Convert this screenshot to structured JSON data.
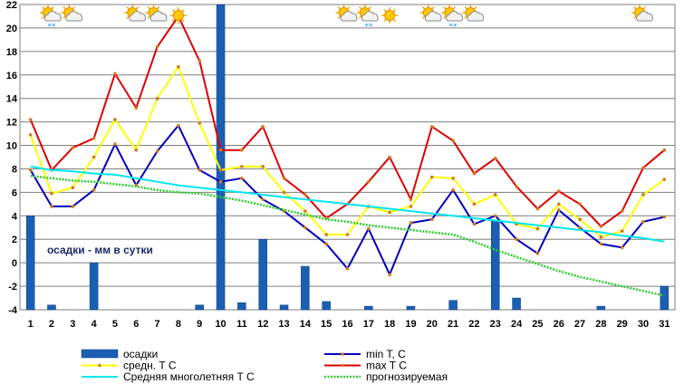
{
  "chart_data": {
    "type": "line",
    "x": [
      1,
      2,
      3,
      4,
      5,
      6,
      7,
      8,
      9,
      10,
      11,
      12,
      13,
      14,
      15,
      16,
      17,
      18,
      19,
      20,
      21,
      22,
      23,
      24,
      25,
      26,
      27,
      28,
      29,
      30,
      31
    ],
    "xlim": [
      1,
      31
    ],
    "ylim": [
      -4,
      22
    ],
    "yticks": [
      -4,
      -2,
      0,
      2,
      4,
      6,
      8,
      10,
      12,
      14,
      16,
      18,
      20,
      22
    ],
    "grid": true,
    "annotation": "осадки - мм в сутки",
    "series": [
      {
        "name": "осадки",
        "kind": "bar",
        "color": "#1a5fb4",
        "values": [
          4,
          -3.6,
          null,
          0,
          null,
          null,
          null,
          null,
          -3.6,
          22,
          -3.4,
          2,
          -3.6,
          -0.3,
          -3.3,
          null,
          -3.7,
          null,
          -3.7,
          null,
          -3.2,
          null,
          3.6,
          -3,
          null,
          null,
          null,
          -3.7,
          null,
          null,
          -2
        ]
      },
      {
        "name": "min T, C",
        "kind": "line",
        "color": "#0000bb",
        "values": [
          7.9,
          4.8,
          4.8,
          6.2,
          10.1,
          6.6,
          9.5,
          11.7,
          7.9,
          6.9,
          7.2,
          5.4,
          4.4,
          3.0,
          1.6,
          -0.5,
          2.9,
          -1.0,
          3.4,
          3.7,
          6.2,
          3.3,
          4.0,
          2.0,
          0.8,
          4.5,
          3.0,
          1.6,
          1.3,
          3.5,
          3.9
        ]
      },
      {
        "name": "средн. T C",
        "kind": "line",
        "color": "#ffff00",
        "values": [
          10.9,
          5.9,
          6.4,
          9.0,
          12.2,
          9.6,
          14.0,
          16.7,
          11.9,
          7.9,
          8.2,
          8.2,
          6.0,
          4.4,
          2.4,
          2.4,
          4.8,
          4.3,
          4.8,
          7.3,
          7.2,
          5.0,
          5.8,
          3.3,
          2.9,
          5.0,
          3.7,
          2.2,
          2.7,
          5.8,
          7.1
        ]
      },
      {
        "name": "max T C",
        "kind": "line",
        "color": "#dd0000",
        "values": [
          12.2,
          7.9,
          9.8,
          10.6,
          16.1,
          13.2,
          18.4,
          21.0,
          17.2,
          9.6,
          9.6,
          11.6,
          7.2,
          5.8,
          3.8,
          5.0,
          6.9,
          9.0,
          5.4,
          11.6,
          10.4,
          7.6,
          8.9,
          6.5,
          4.6,
          6.1,
          5.0,
          3.1,
          4.4,
          8.1,
          9.6
        ]
      },
      {
        "name": "Средняя многолетняя T C",
        "kind": "line",
        "color": "#00e5ee",
        "values": [
          8.2,
          7.9,
          7.8,
          7.6,
          7.5,
          7.2,
          6.9,
          6.6,
          6.4,
          6.2,
          6.0,
          5.8,
          5.6,
          5.4,
          5.2,
          5.0,
          4.8,
          4.6,
          4.4,
          4.2,
          4.0,
          3.8,
          3.6,
          3.4,
          3.2,
          3.0,
          2.8,
          2.6,
          2.3,
          2.1,
          1.8
        ]
      },
      {
        "name": "прогнозируемая",
        "kind": "line",
        "color": "#2ecc2e",
        "dashed": true,
        "values": [
          7.4,
          7.2,
          7.0,
          6.9,
          6.7,
          6.5,
          6.2,
          6.0,
          5.9,
          5.6,
          5.3,
          4.9,
          4.5,
          4.1,
          3.7,
          3.5,
          3.2,
          3.0,
          2.8,
          2.6,
          2.4,
          1.8,
          1.1,
          0.5,
          -0.1,
          -0.7,
          -1.2,
          -1.6,
          -2.0,
          -2.4,
          -2.8
        ]
      }
    ]
  },
  "weather_icons": [
    {
      "day": 2,
      "icon": "sun-cloud-icon",
      "snow": true
    },
    {
      "day": 3,
      "icon": "sun-cloud-icon",
      "snow": false
    },
    {
      "day": 6,
      "icon": "sun-cloud-icon",
      "snow": false
    },
    {
      "day": 7,
      "icon": "sun-cloud-icon",
      "snow": false
    },
    {
      "day": 8,
      "icon": "sun-icon",
      "snow": false
    },
    {
      "day": 16,
      "icon": "sun-cloud-icon",
      "snow": false
    },
    {
      "day": 17,
      "icon": "sun-cloud-icon",
      "snow": true
    },
    {
      "day": 18,
      "icon": "sun-icon",
      "snow": false
    },
    {
      "day": 20,
      "icon": "sun-cloud-icon",
      "snow": false
    },
    {
      "day": 21,
      "icon": "sun-cloud-icon",
      "snow": true
    },
    {
      "day": 22,
      "icon": "sun-cloud-icon",
      "snow": false
    },
    {
      "day": 30,
      "icon": "sun-cloud-icon",
      "snow": false
    }
  ],
  "legend": {
    "placement": "bottom",
    "columns": 2
  }
}
